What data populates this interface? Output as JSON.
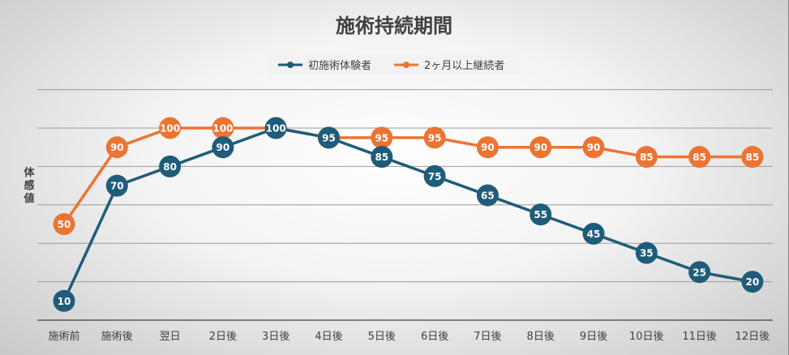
{
  "chart_data": {
    "type": "line",
    "title": "施術持続期間",
    "ylabel": "体感値",
    "xlabel": "",
    "categories": [
      "施術前",
      "施術後",
      "翌日",
      "2日後",
      "3日後",
      "4日後",
      "5日後",
      "6日後",
      "7日後",
      "8日後",
      "9日後",
      "10日後",
      "11日後",
      "12日後"
    ],
    "ylim": [
      0,
      120
    ],
    "grid": true,
    "legend_position": "top",
    "series": [
      {
        "name": "初施術体験者",
        "color": "#1f5c7a",
        "values": [
          10,
          70,
          80,
          90,
          100,
          95,
          85,
          75,
          65,
          55,
          45,
          35,
          25,
          20
        ]
      },
      {
        "name": "2ヶ月以上継続者",
        "color": "#ec7433",
        "values": [
          50,
          90,
          100,
          100,
          100,
          95,
          95,
          95,
          90,
          90,
          90,
          85,
          85,
          85
        ]
      }
    ]
  }
}
